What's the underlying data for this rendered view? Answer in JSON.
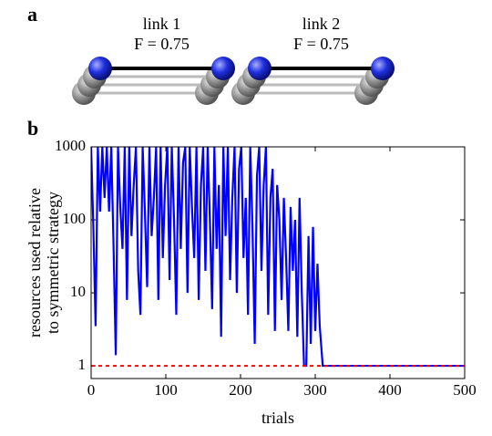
{
  "panel_labels": [
    "a",
    "b"
  ],
  "diagram": {
    "links": [
      {
        "label": "link 1",
        "fidelity": "F = 0.75"
      },
      {
        "label": "link 2",
        "fidelity": "F = 0.75"
      }
    ]
  },
  "chart_data": {
    "type": "line",
    "xlabel": "trials",
    "ylabel": [
      "resources used relative",
      "to symmetric strategy"
    ],
    "xlim": [
      0,
      500
    ],
    "xticks": [
      0,
      100,
      200,
      300,
      400,
      500
    ],
    "ylim": [
      0.67,
      1000
    ],
    "yticks": [
      1,
      10,
      100,
      1000
    ],
    "yscale": "log",
    "grid": false,
    "series": [
      {
        "color": "#0000ff",
        "style": "solid",
        "x": [
          0,
          3,
          6,
          9,
          12,
          15,
          18,
          21,
          24,
          27,
          30,
          33,
          36,
          39,
          42,
          45,
          48,
          51,
          54,
          57,
          60,
          63,
          66,
          69,
          72,
          75,
          78,
          81,
          84,
          87,
          90,
          93,
          96,
          99,
          102,
          105,
          108,
          111,
          114,
          117,
          120,
          123,
          126,
          129,
          132,
          135,
          138,
          141,
          144,
          147,
          150,
          153,
          156,
          159,
          162,
          165,
          168,
          171,
          174,
          177,
          180,
          183,
          186,
          189,
          192,
          195,
          198,
          201,
          204,
          207,
          210,
          213,
          216,
          219,
          222,
          225,
          228,
          231,
          234,
          237,
          240,
          243,
          246,
          249,
          252,
          255,
          258,
          261,
          264,
          267,
          270,
          273,
          276,
          279,
          282,
          285,
          288,
          291,
          294,
          297,
          300,
          303,
          306,
          310,
          500
        ],
        "values": [
          1000,
          80,
          3.5,
          1000,
          130,
          1000,
          200,
          1000,
          130,
          1000,
          45,
          1.4,
          1000,
          150,
          40,
          1000,
          8,
          1000,
          60,
          300,
          1000,
          20,
          5,
          1000,
          130,
          12,
          1000,
          60,
          200,
          1000,
          8,
          1000,
          30,
          300,
          1000,
          15,
          1000,
          100,
          5,
          1000,
          40,
          600,
          1000,
          10,
          1000,
          150,
          30,
          1000,
          8,
          300,
          1000,
          20,
          1000,
          100,
          6,
          1000,
          40,
          300,
          2.5,
          1000,
          60,
          1000,
          15,
          200,
          1000,
          10,
          500,
          1000,
          30,
          200,
          5,
          1000,
          80,
          2,
          400,
          1000,
          20,
          300,
          1000,
          5,
          200,
          500,
          3,
          300,
          100,
          8,
          200,
          30,
          3,
          150,
          20,
          100,
          2.5,
          200,
          10,
          1,
          1,
          60,
          2,
          80,
          3,
          25,
          3.5,
          1,
          1
        ]
      },
      {
        "color": "#ff0000",
        "style": "dashed",
        "x": [
          0,
          500
        ],
        "values": [
          1,
          1
        ]
      }
    ]
  }
}
